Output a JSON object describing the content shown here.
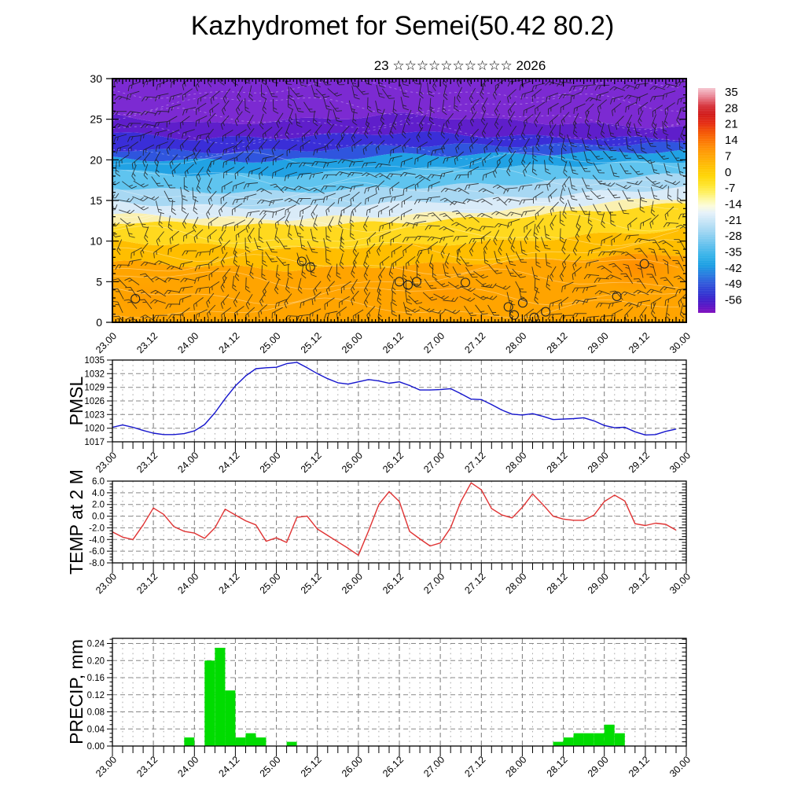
{
  "header": {
    "title": "Kazhydromet for Semei(50.42 80.2)",
    "subtitle": "23 ☆☆☆☆☆☆☆☆☆☆ 2026"
  },
  "x_axis": {
    "labels": [
      "23.00",
      "23.12",
      "24.00",
      "24.12",
      "25.00",
      "25.12",
      "26.00",
      "26.12",
      "27.00",
      "27.12",
      "28.00",
      "28.12",
      "29.00",
      "29.12",
      "30.00"
    ],
    "hours_total": 168,
    "label_step_hours": 12,
    "minor_step_hours": 3
  },
  "chart_data": [
    {
      "id": "temp-height-cross-section",
      "type": "heatmap",
      "title": "",
      "ylim": [
        0,
        30
      ],
      "yticks": [
        0,
        5,
        10,
        15,
        20,
        25,
        30
      ],
      "overlay": "wind-barbs",
      "grid": false,
      "calm_circles": [
        [
          0.04,
          2.9
        ],
        [
          0.33,
          7.5
        ],
        [
          0.345,
          6.8
        ],
        [
          0.5,
          5.0
        ],
        [
          0.515,
          4.6
        ],
        [
          0.53,
          5.0
        ],
        [
          0.615,
          4.9
        ],
        [
          0.69,
          1.9
        ],
        [
          0.7,
          0.9
        ],
        [
          0.715,
          2.4
        ],
        [
          0.735,
          0.6
        ],
        [
          0.755,
          1.3
        ],
        [
          0.879,
          3.2
        ],
        [
          0.927,
          7.2
        ]
      ],
      "band_fracs": [
        0,
        0.15,
        0.3,
        0.5,
        0.7,
        0.85,
        1
      ],
      "bands": [
        {
          "color": "#FFA400",
          "top": [
            7.5,
            7.0,
            6.5,
            7.0,
            7.5,
            8.0,
            8.5
          ]
        },
        {
          "color": "#FFBE00",
          "top": [
            10.0,
            9.5,
            9.0,
            9.5,
            10.0,
            10.8,
            11.5
          ]
        },
        {
          "color": "#FFD91E",
          "top": [
            12.4,
            12.1,
            11.9,
            12.3,
            13.0,
            13.8,
            14.6
          ]
        },
        {
          "color": "#FAF0B0",
          "top": [
            13.3,
            12.9,
            12.7,
            13.2,
            13.9,
            14.7,
            15.4
          ]
        },
        {
          "color": "#D9EBF8",
          "top": [
            14.8,
            14.3,
            14.1,
            14.7,
            15.3,
            16.0,
            16.6
          ]
        },
        {
          "color": "#A8D8F3",
          "top": [
            16.6,
            16.1,
            16.0,
            16.6,
            17.1,
            17.7,
            18.2
          ]
        },
        {
          "color": "#5FC4EF",
          "top": [
            18.6,
            18.2,
            18.1,
            18.8,
            19.1,
            19.5,
            19.9
          ]
        },
        {
          "color": "#21A2E4",
          "top": [
            20.2,
            19.9,
            19.9,
            20.6,
            20.7,
            20.9,
            21.1
          ]
        },
        {
          "color": "#2F55DE",
          "top": [
            21.3,
            21.0,
            21.1,
            21.8,
            21.8,
            21.9,
            22.0
          ]
        },
        {
          "color": "#3A2ED8",
          "top": [
            23.3,
            22.6,
            22.8,
            23.4,
            22.9,
            22.7,
            22.6
          ]
        },
        {
          "color": "#5F1ECB",
          "top": [
            25.5,
            24.4,
            24.8,
            25.6,
            24.8,
            24.3,
            24.0
          ]
        },
        {
          "color": "#7C2AD2",
          "top": [
            31,
            31,
            31,
            31,
            31,
            31,
            31
          ]
        }
      ],
      "warm_blobs": [
        [
          0.915,
          6.8,
          58,
          30,
          "#FF8C00",
          0.95
        ],
        [
          0.58,
          3.5,
          50,
          22,
          "#FF9600",
          0.7
        ],
        [
          0.06,
          3.0,
          42,
          20,
          "#FF9600",
          0.6
        ],
        [
          0.33,
          8.0,
          45,
          18,
          "#FFB400",
          0.55
        ]
      ],
      "colorbar": {
        "ticks": [
          35,
          28,
          21,
          14,
          7,
          0,
          -7,
          -14,
          -21,
          -28,
          -35,
          -42,
          -49,
          -56
        ],
        "gradient": [
          [
            0.0,
            "#F5C6D0"
          ],
          [
            0.04,
            "#E87E8E"
          ],
          [
            0.08,
            "#D63038"
          ],
          [
            0.115,
            "#D01818"
          ],
          [
            0.155,
            "#E42810"
          ],
          [
            0.195,
            "#F35000"
          ],
          [
            0.235,
            "#FC7400"
          ],
          [
            0.27,
            "#FF9000"
          ],
          [
            0.31,
            "#FFA800"
          ],
          [
            0.35,
            "#FFC000"
          ],
          [
            0.39,
            "#FFD400"
          ],
          [
            0.43,
            "#FFE426"
          ],
          [
            0.465,
            "#FFF060"
          ],
          [
            0.5,
            "#FDF9AC"
          ],
          [
            0.525,
            "#FCFCDC"
          ],
          [
            0.555,
            "#E6F2FA"
          ],
          [
            0.59,
            "#C8E6F7"
          ],
          [
            0.63,
            "#A6D8F3"
          ],
          [
            0.67,
            "#7FCBF0"
          ],
          [
            0.71,
            "#55BCEC"
          ],
          [
            0.75,
            "#2FB0E8"
          ],
          [
            0.79,
            "#189CE3"
          ],
          [
            0.83,
            "#2479DF"
          ],
          [
            0.87,
            "#2D55DA"
          ],
          [
            0.91,
            "#2D35D2"
          ],
          [
            0.945,
            "#3D1AC9"
          ],
          [
            0.975,
            "#5E10C3"
          ],
          [
            1.0,
            "#7F0ABD"
          ]
        ]
      }
    },
    {
      "id": "pmsl",
      "type": "line",
      "label": "PMSL",
      "color": "#1414CD",
      "ylim": [
        1017,
        1035
      ],
      "yticks": [
        1017,
        1020,
        1023,
        1026,
        1029,
        1032,
        1035
      ],
      "decimals": 0,
      "minor_step": 1,
      "start_hour": 0,
      "step_hours": 3,
      "values": [
        1020.2,
        1020.7,
        1020.2,
        1019.5,
        1018.9,
        1018.6,
        1018.6,
        1018.8,
        1019.4,
        1020.8,
        1023.4,
        1026.5,
        1029.3,
        1031.5,
        1033.1,
        1033.3,
        1033.4,
        1034.2,
        1034.5,
        1033.3,
        1032.0,
        1030.9,
        1030.0,
        1029.7,
        1030.2,
        1030.7,
        1030.4,
        1029.9,
        1030.2,
        1029.4,
        1028.4,
        1028.4,
        1028.5,
        1028.7,
        1027.6,
        1026.4,
        1026.3,
        1025.2,
        1024.0,
        1023.1,
        1022.9,
        1023.2,
        1022.6,
        1021.9,
        1022.0,
        1022.1,
        1022.3,
        1021.6,
        1020.6,
        1020.1,
        1020.2,
        1019.2,
        1018.5,
        1018.6,
        1019.3,
        1019.8
      ]
    },
    {
      "id": "temp-2m",
      "type": "line",
      "label": "TEMP at 2 M",
      "color": "#E03232",
      "ylim": [
        -8,
        6
      ],
      "yticks": [
        -8,
        -6,
        -4,
        -2,
        0,
        2,
        4,
        6
      ],
      "decimals": 1,
      "minor_step": 0.5,
      "start_hour": 0,
      "step_hours": 3,
      "values": [
        -2.7,
        -3.6,
        -4.0,
        -1.5,
        1.4,
        0.3,
        -1.8,
        -2.6,
        -2.9,
        -3.8,
        -2.0,
        1.2,
        0.2,
        -0.8,
        -1.5,
        -4.3,
        -3.7,
        -4.5,
        -0.2,
        0.0,
        -2.2,
        -3.3,
        -4.4,
        -5.5,
        -6.7,
        -2.5,
        2.0,
        4.2,
        2.5,
        -2.6,
        -3.9,
        -5.1,
        -4.6,
        -2.0,
        2.5,
        5.7,
        4.5,
        1.3,
        0.2,
        -0.3,
        1.5,
        3.8,
        2.0,
        0.0,
        -0.5,
        -0.7,
        -0.7,
        0.2,
        2.5,
        3.6,
        2.6,
        -1.3,
        -1.6,
        -1.2,
        -1.4,
        -2.4
      ]
    },
    {
      "id": "precip",
      "type": "bar",
      "label": "PRECIP, mm",
      "color": "#00DC00",
      "ylim": [
        0,
        0.252
      ],
      "yticks": [
        0,
        0.04,
        0.08,
        0.12,
        0.16,
        0.2,
        0.24
      ],
      "decimals": 2,
      "minor_step": 0.01,
      "start_hour": 0,
      "step_hours": 3,
      "bar_width_hours": 3,
      "values": [
        0,
        0,
        0,
        0,
        0,
        0,
        0,
        0.02,
        0,
        0.2,
        0.23,
        0.13,
        0.02,
        0.03,
        0.02,
        0,
        0,
        0.01,
        0,
        0,
        0,
        0,
        0,
        0,
        0,
        0,
        0,
        0,
        0,
        0,
        0,
        0,
        0,
        0,
        0,
        0,
        0,
        0,
        0,
        0,
        0,
        0,
        0,
        0.01,
        0.02,
        0.03,
        0.03,
        0.03,
        0.05,
        0.03,
        0,
        0,
        0,
        0,
        0,
        0
      ]
    }
  ]
}
